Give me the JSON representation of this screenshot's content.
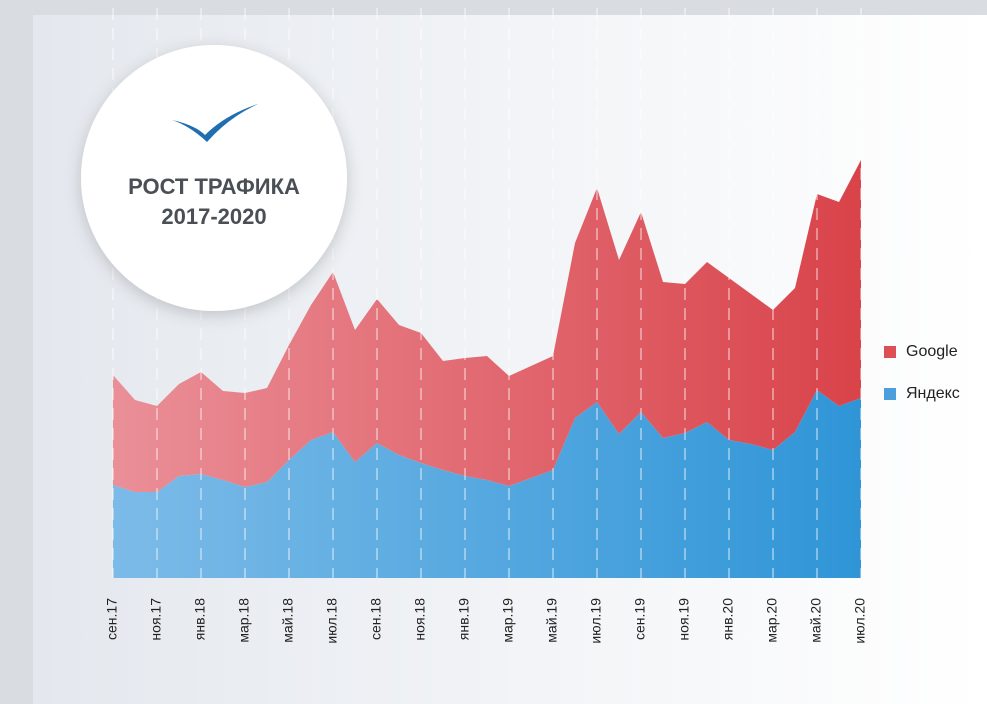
{
  "chart_data": {
    "type": "stacked-area",
    "title": "РОСТ ТРАФИКА",
    "subtitle": "2017-2020",
    "categories": [
      "сен.17",
      null,
      "ноя.17",
      null,
      "янв.18",
      null,
      "мар.18",
      null,
      "май.18",
      null,
      "июл.18",
      null,
      "сен.18",
      null,
      "ноя.18",
      null,
      "янв.19",
      null,
      "мар.19",
      null,
      "май.19",
      null,
      "июл.19",
      null,
      "сен.19",
      null,
      "ноя.19",
      null,
      "янв.20",
      null,
      "мар.20",
      null,
      "май.20",
      null,
      "июл.20"
    ],
    "series": [
      {
        "name": "Яндекс",
        "color": "#4a9fdc",
        "values": [
          93,
          86,
          86,
          102,
          104,
          98,
          91,
          96,
          118,
          138,
          146,
          116,
          135,
          123,
          115,
          108,
          102,
          98,
          92,
          100,
          108,
          160,
          176,
          144,
          166,
          140,
          145,
          156,
          138,
          134,
          128,
          146,
          188,
          172,
          180
        ]
      },
      {
        "name": "Google",
        "color": "#dc4f55",
        "values": [
          110,
          92,
          86,
          92,
          102,
          89,
          94,
          94,
          115,
          135,
          160,
          132,
          144,
          130,
          130,
          109,
          118,
          124,
          110,
          112,
          114,
          175,
          214,
          174,
          200,
          156,
          149,
          160,
          162,
          150,
          140,
          144,
          196,
          204,
          238
        ]
      }
    ],
    "ylim": [
      0,
      420
    ],
    "legend": "right"
  }
}
